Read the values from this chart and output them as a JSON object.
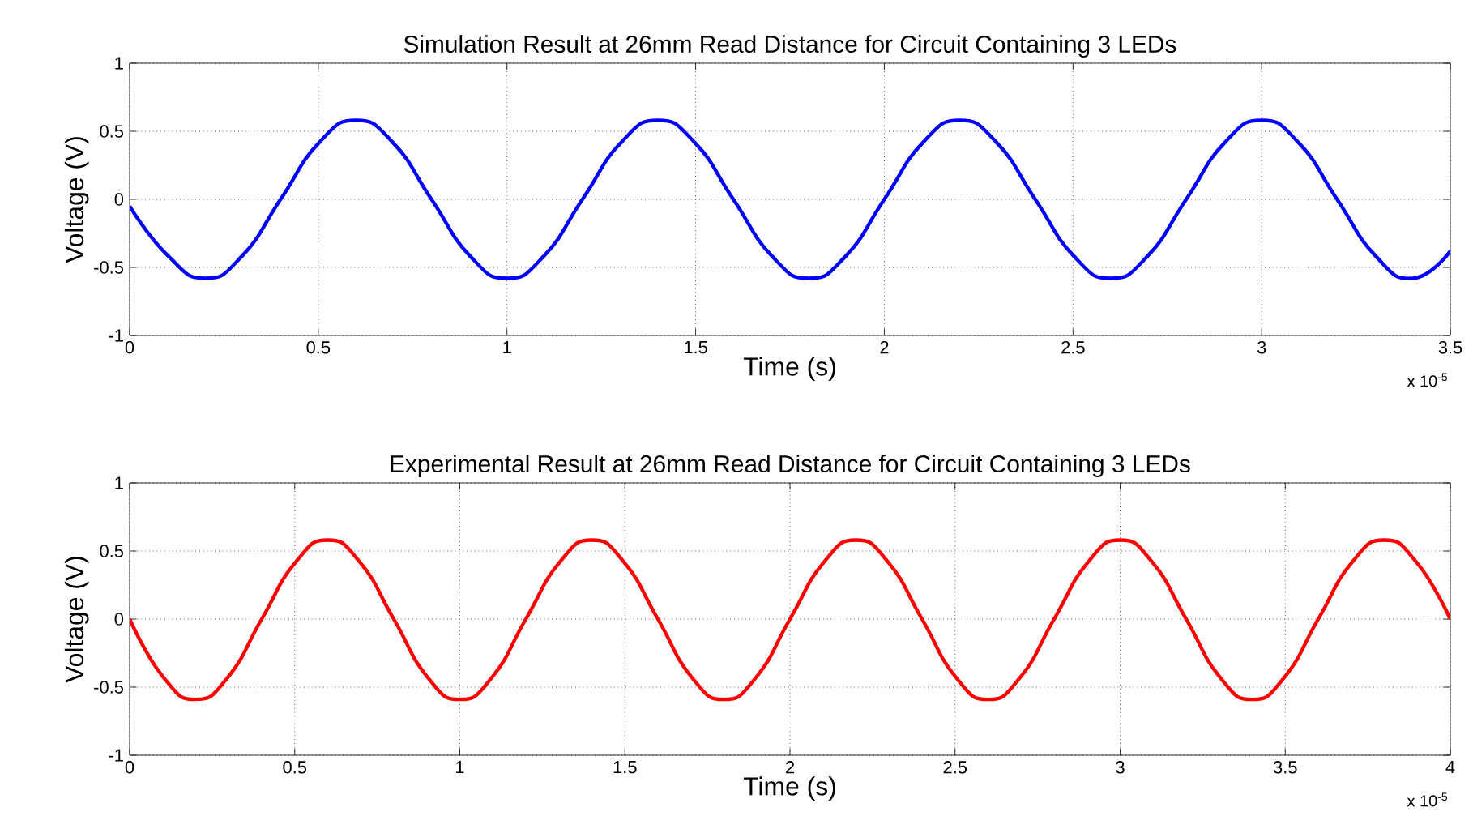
{
  "chart_data": [
    {
      "type": "line",
      "title": "Simulation Result at 26mm Read Distance for Circuit Containing 3 LEDs",
      "xlabel": "Time (s)",
      "ylabel": "Voltage (V)",
      "annotations": [
        "x 10$^{-5}$"
      ],
      "xlim": [
        0,
        3.5
      ],
      "ylim": [
        -1,
        1
      ],
      "xticks": [
        0,
        0.5,
        1,
        1.5,
        2,
        2.5,
        3,
        3.5
      ],
      "yticks": [
        -1,
        -0.5,
        0,
        0.5,
        1
      ],
      "grid": true,
      "x": [
        0,
        0.1,
        0.2,
        0.3,
        0.4,
        0.5,
        0.6,
        0.7,
        0.8,
        0.9,
        1,
        1.1,
        1.2,
        1.3,
        1.4,
        1.5,
        1.6,
        1.7,
        1.8,
        1.9,
        2,
        2.1,
        2.2,
        2.3,
        2.4,
        2.5,
        2.6,
        2.7,
        2.8,
        2.9,
        3,
        3.1,
        3.2,
        3.3,
        3.4,
        3.5
      ],
      "series": [
        {
          "color": "#0000ff",
          "values": [
            -0.05,
            -0.41,
            -0.58,
            -0.41,
            0,
            0.41,
            0.58,
            0.41,
            0,
            -0.41,
            -0.58,
            -0.41,
            0,
            0.41,
            0.58,
            0.41,
            0,
            -0.41,
            -0.58,
            -0.41,
            0,
            0.41,
            0.58,
            0.41,
            0,
            -0.41,
            -0.58,
            -0.41,
            0,
            0.41,
            0.58,
            0.41,
            0,
            -0.41,
            -0.58,
            -0.38
          ]
        }
      ]
    },
    {
      "type": "line",
      "title": "Experimental Result at 26mm Read Distance for Circuit Containing 3 LEDs",
      "xlabel": "Time (s)",
      "ylabel": "Voltage (V)",
      "annotations": [
        "x 10$^{-5}$"
      ],
      "xlim": [
        0,
        4
      ],
      "ylim": [
        -1,
        1
      ],
      "xticks": [
        0,
        0.5,
        1,
        1.5,
        2,
        2.5,
        3,
        3.5,
        4
      ],
      "yticks": [
        -1,
        -0.5,
        0,
        0.5,
        1
      ],
      "grid": true,
      "x": [
        0,
        0.1,
        0.2,
        0.3,
        0.4,
        0.5,
        0.6,
        0.7,
        0.8,
        0.9,
        1,
        1.1,
        1.2,
        1.3,
        1.4,
        1.5,
        1.6,
        1.7,
        1.8,
        1.9,
        2,
        2.1,
        2.2,
        2.3,
        2.4,
        2.5,
        2.6,
        2.7,
        2.8,
        2.9,
        3,
        3.1,
        3.2,
        3.3,
        3.4,
        3.5,
        3.6,
        3.7,
        3.8,
        3.9,
        4
      ],
      "series": [
        {
          "color": "#ff0000",
          "values": [
            0,
            -0.42,
            -0.59,
            -0.42,
            0,
            0.41,
            0.58,
            0.41,
            0,
            -0.42,
            -0.59,
            -0.42,
            0,
            0.41,
            0.58,
            0.41,
            0,
            -0.42,
            -0.59,
            -0.42,
            0,
            0.41,
            0.58,
            0.41,
            0,
            -0.42,
            -0.59,
            -0.42,
            0,
            0.41,
            0.58,
            0.41,
            0,
            -0.42,
            -0.59,
            -0.42,
            0,
            0.41,
            0.58,
            0.41,
            0
          ]
        }
      ]
    }
  ]
}
